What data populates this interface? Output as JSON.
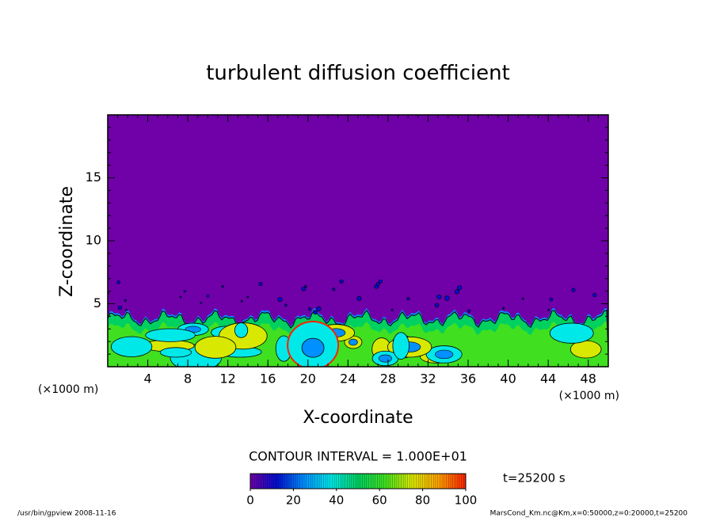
{
  "chart_data": {
    "type": "contour",
    "title": "turbulent diffusion coefficient",
    "x_label": "X-coordinate",
    "y_label": "Z-coordinate",
    "x_unit": "(×1000 m)",
    "y_unit": "(×1000 m)",
    "xlim": [
      0,
      50
    ],
    "ylim": [
      0,
      20
    ],
    "xticks": [
      4,
      8,
      12,
      16,
      20,
      24,
      28,
      32,
      36,
      40,
      44,
      48
    ],
    "yticks": [
      5,
      10,
      15
    ],
    "contour_interval": "CONTOUR INTERVAL = 1.000E+01",
    "colorbar": {
      "lim": [
        0,
        100
      ],
      "ticks": [
        0,
        20,
        40,
        60,
        80,
        100
      ],
      "colors": [
        "#7000a8",
        "#0010d0",
        "#0090ff",
        "#00e8e8",
        "#00d060",
        "#40e020",
        "#d8e800",
        "#ffa000",
        "#ff2000"
      ]
    },
    "time_label": "t=25200 s",
    "footer_left": "/usr/bin/gpview   2008-11-16",
    "footer_right": "MarsCond_Km.nc@Km,x=0:50000,z=0:20000,t=25200"
  }
}
